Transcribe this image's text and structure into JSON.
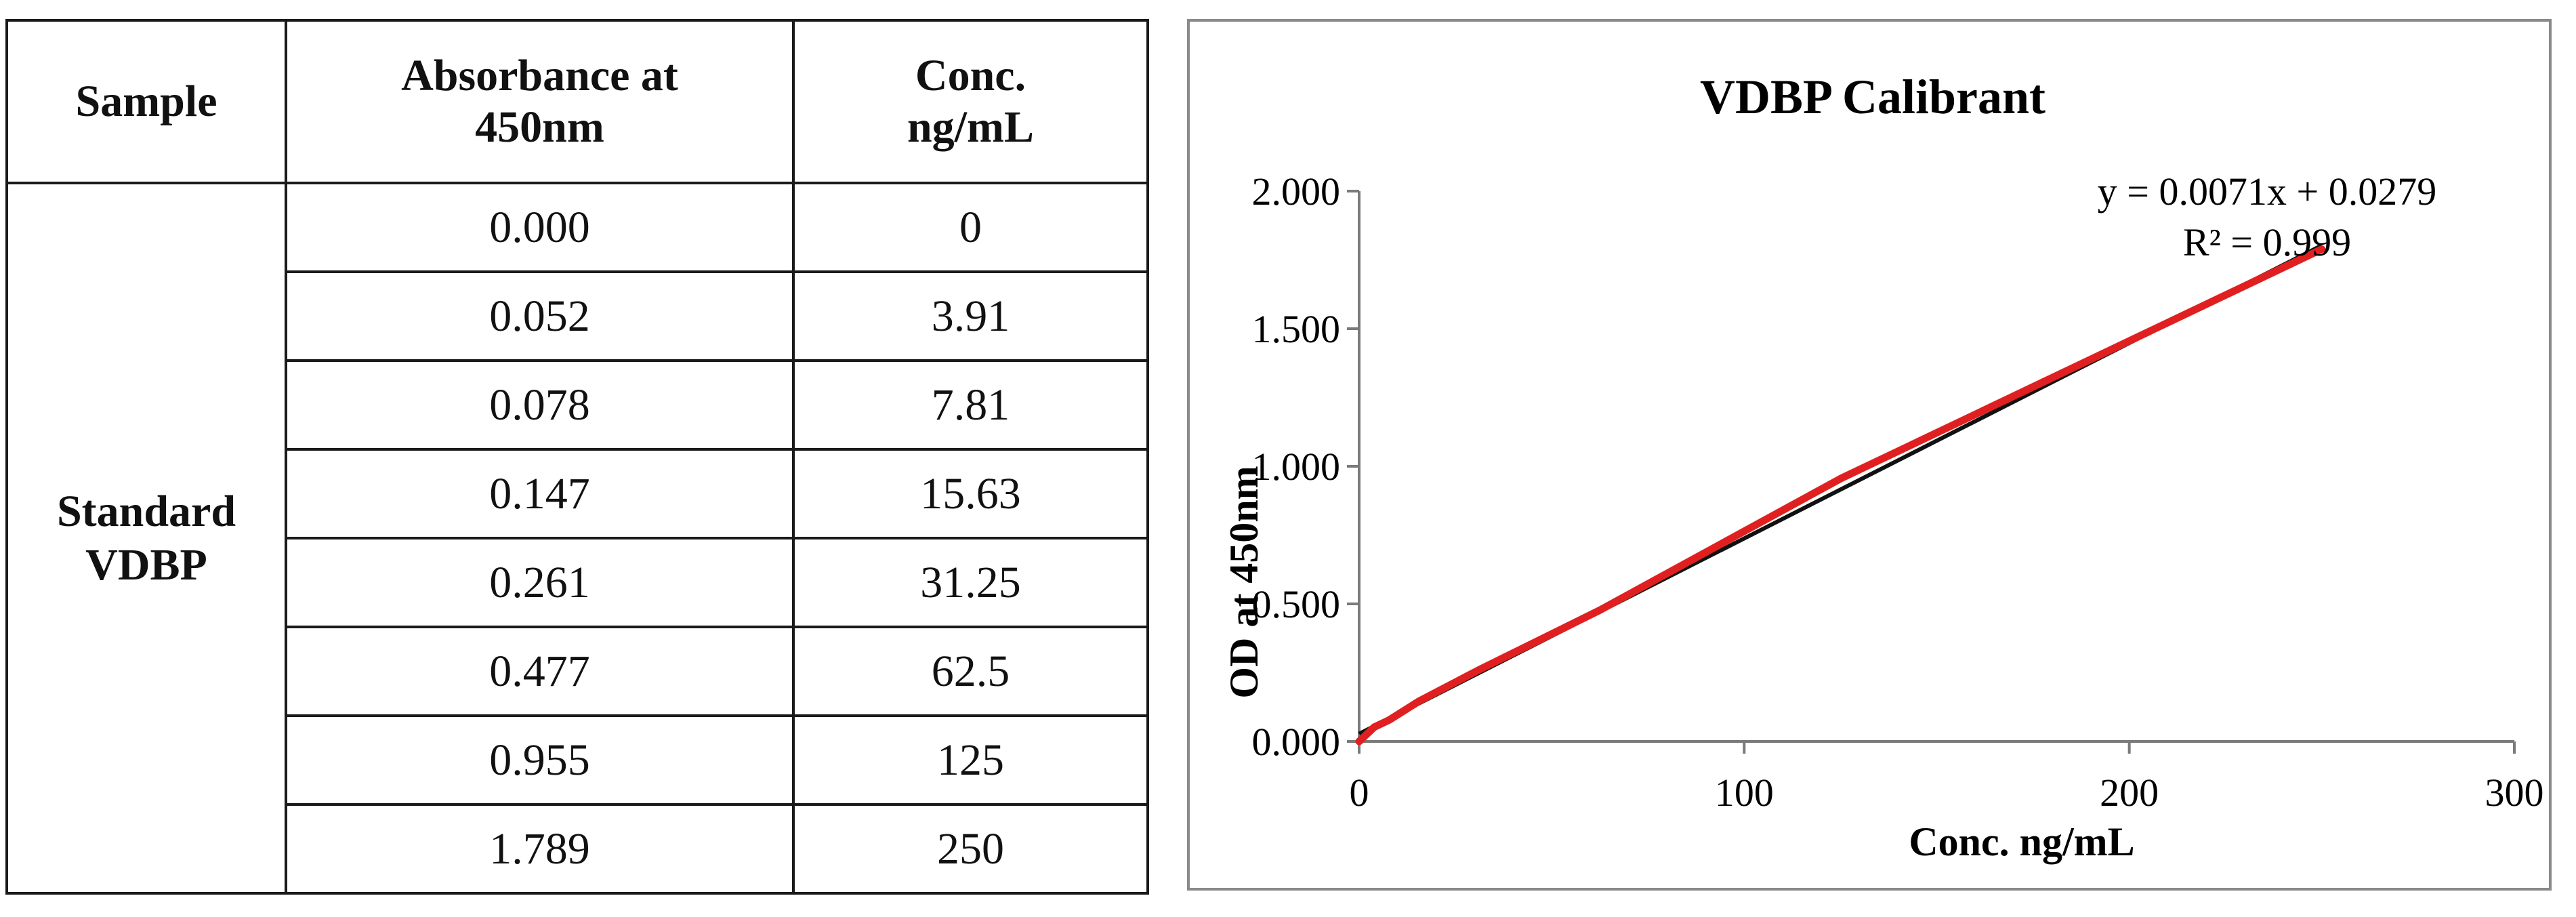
{
  "table": {
    "headers": [
      "Sample",
      "Absorbance at 450nm",
      "Conc. ng/mL"
    ],
    "header_lines": [
      [
        "Sample"
      ],
      [
        "Absorbance at",
        "450nm"
      ],
      [
        "Conc.",
        "ng/mL"
      ]
    ],
    "group_label_lines": [
      "Standard",
      "VDBP"
    ],
    "rows": [
      {
        "absorbance": "0.000",
        "conc": "0"
      },
      {
        "absorbance": "0.052",
        "conc": "3.91"
      },
      {
        "absorbance": "0.078",
        "conc": "7.81"
      },
      {
        "absorbance": "0.147",
        "conc": "15.63"
      },
      {
        "absorbance": "0.261",
        "conc": "31.25"
      },
      {
        "absorbance": "0.477",
        "conc": "62.5"
      },
      {
        "absorbance": "0.955",
        "conc": "125"
      },
      {
        "absorbance": "1.789",
        "conc": "250"
      }
    ]
  },
  "chart_data": {
    "type": "line",
    "title": "VDBP Calibrant",
    "xlabel": "Conc. ng/mL",
    "ylabel": "OD at 450nm",
    "xlim": [
      0,
      300
    ],
    "ylim": [
      0,
      2
    ],
    "x_ticks": [
      "0",
      "100",
      "200",
      "300"
    ],
    "y_ticks": [
      "0.000",
      "0.500",
      "1.000",
      "1.500",
      "2.000"
    ],
    "grid": false,
    "legend": "none",
    "series": [
      {
        "x": [
          0,
          3.91,
          7.81,
          15.63,
          31.25,
          62.5,
          125,
          250
        ],
        "y": [
          0.0,
          0.052,
          0.078,
          0.147,
          0.261,
          0.477,
          0.955,
          1.789
        ],
        "color": "#e02020"
      }
    ],
    "trendline": {
      "slope": 0.0071,
      "intercept": 0.0279,
      "color": "#111111",
      "equation": "y = 0.0071x + 0.0279",
      "r_squared": "R² = 0.999"
    }
  }
}
